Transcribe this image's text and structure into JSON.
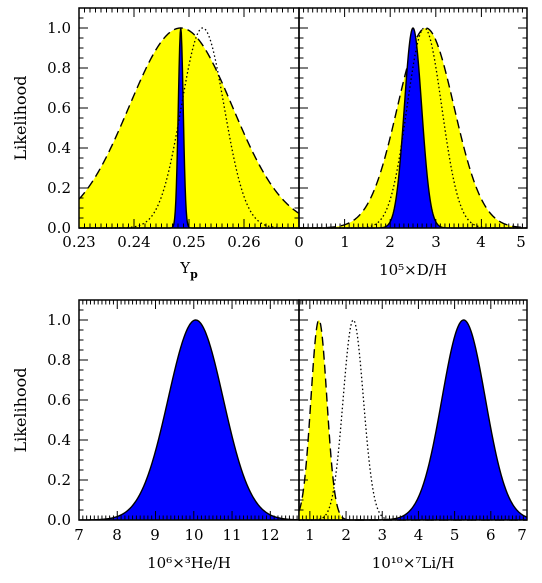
{
  "colors": {
    "yellow": "#ffff00",
    "blue": "#0000ff",
    "line": "#000000"
  },
  "chart_data": [
    {
      "type": "area",
      "xlim": [
        0.23,
        0.27
      ],
      "ylim": [
        0,
        1.1
      ],
      "xticks": [
        "0.23",
        "0.24",
        "0.25",
        "0.26"
      ],
      "yticks": [
        "0.0",
        "0.2",
        "0.4",
        "0.6",
        "0.8",
        "1.0"
      ],
      "xlabel": "Y",
      "xlabel_sub": "p",
      "ylabel": "Likelihood",
      "curves": [
        {
          "style": "dashed",
          "fill": "yellow",
          "peak": 0.2485,
          "sigma": 0.0094
        },
        {
          "style": "dotted",
          "fill": "none",
          "peak": 0.2525,
          "sigma": 0.0039
        },
        {
          "style": "solid",
          "fill": "blue",
          "peak": 0.2485,
          "sigma": 0.00045
        }
      ]
    },
    {
      "type": "area",
      "xlim": [
        0,
        5
      ],
      "ylim": [
        0,
        1.1
      ],
      "xticks": [
        "0",
        "1",
        "2",
        "3",
        "4",
        "5"
      ],
      "yticks": [],
      "xlabel": "10⁵×D/H",
      "curves": [
        {
          "style": "dashed",
          "fill": "yellow",
          "peak": 2.78,
          "sigma": 0.62
        },
        {
          "style": "dotted",
          "fill": "none",
          "peak": 2.75,
          "sigma": 0.38
        },
        {
          "style": "solid",
          "fill": "blue",
          "peak": 2.5,
          "sigma": 0.19
        }
      ]
    },
    {
      "type": "area",
      "xlim": [
        7,
        12.75
      ],
      "ylim": [
        0,
        1.1
      ],
      "xticks": [
        "7",
        "8",
        "9",
        "10",
        "11",
        "12"
      ],
      "yticks": [
        "0.0",
        "0.2",
        "0.4",
        "0.6",
        "0.8",
        "1.0"
      ],
      "xlabel": "10⁶×³He/H",
      "ylabel": "Likelihood",
      "curves": [
        {
          "style": "solid",
          "fill": "blue",
          "peak": 10.05,
          "sigma": 0.72
        }
      ]
    },
    {
      "type": "area",
      "xlim": [
        0.7,
        7
      ],
      "ylim": [
        0,
        1.1
      ],
      "xticks": [
        "1",
        "2",
        "3",
        "4",
        "5",
        "6",
        "7"
      ],
      "yticks": [],
      "xlabel": "10¹⁰×⁷Li/H",
      "curves": [
        {
          "style": "dashed",
          "fill": "yellow",
          "peak": 1.25,
          "sigma": 0.22
        },
        {
          "style": "dotted",
          "fill": "none",
          "peak": 2.2,
          "sigma": 0.28
        },
        {
          "style": "solid",
          "fill": "blue",
          "peak": 5.25,
          "sigma": 0.6
        }
      ]
    }
  ]
}
